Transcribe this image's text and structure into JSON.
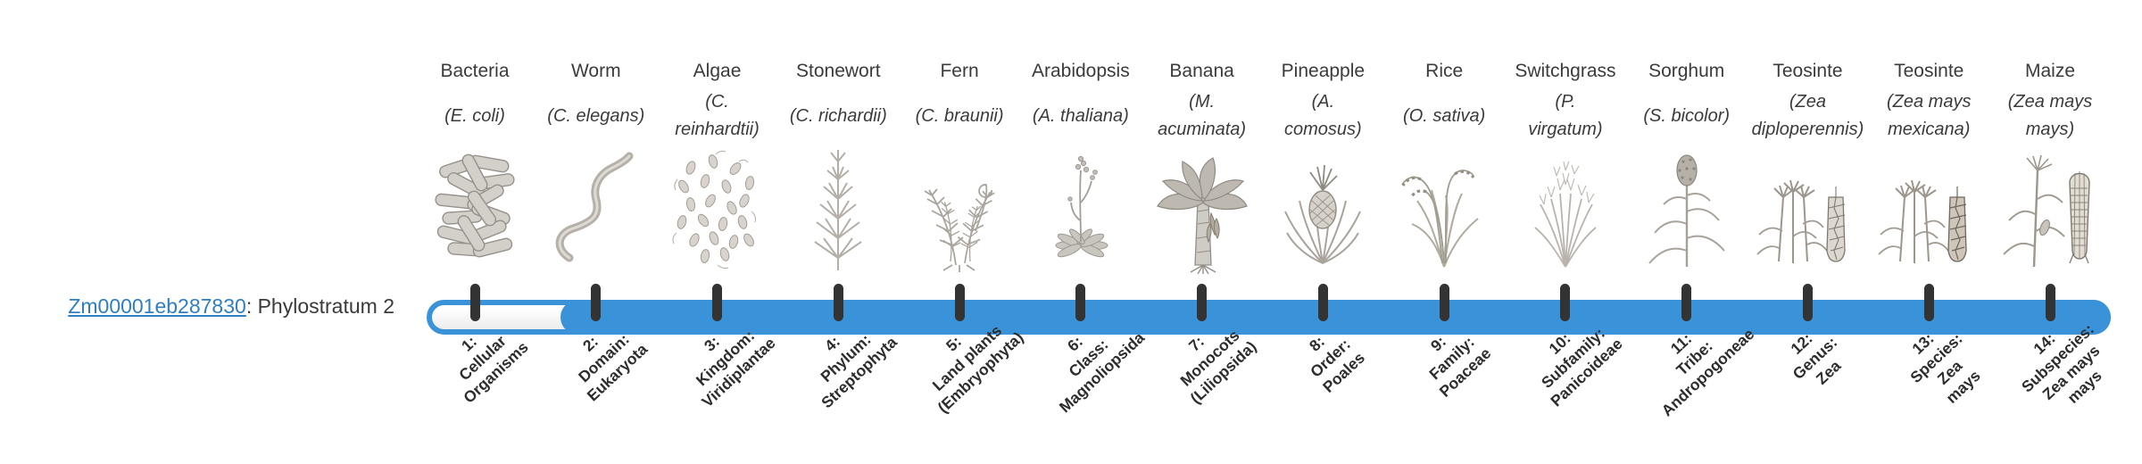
{
  "gene": {
    "id": "Zm00001eb287830",
    "label_suffix": ": Phylostratum 2",
    "phylostratum": 2,
    "link_color": "#2e7fc2"
  },
  "timeline": {
    "bar_color": "#3a93d8",
    "tick_color": "#333333",
    "strata_count": 14,
    "filled_from_stratum": 2,
    "unfilled_strata": [
      1
    ],
    "columns": [
      {
        "name": "Bacteria",
        "species": "(E. coli)",
        "icon": "bacteria-illustration",
        "stratum": "1:\nCellular\nOrganisms"
      },
      {
        "name": "Worm",
        "species": "(C. elegans)",
        "icon": "worm-illustration",
        "stratum": "2:\nDomain:\nEukaryota"
      },
      {
        "name": "Algae",
        "species": "(C.\nreinhardtii)",
        "icon": "algae-illustration",
        "stratum": "3:\nKingdom:\nViridiplantae"
      },
      {
        "name": "Stonewort",
        "species": "(C. richardii)",
        "icon": "stonewort-illustration",
        "stratum": "4:\nPhylum:\nStreptophyta"
      },
      {
        "name": "Fern",
        "species": "(C. braunii)",
        "icon": "fern-illustration",
        "stratum": "5:\nLand plants\n(Embryophyta)"
      },
      {
        "name": "Arabidopsis",
        "species": "(A. thaliana)",
        "icon": "arabidopsis-illustration",
        "stratum": "6:\nClass:\nMagnoliopsida"
      },
      {
        "name": "Banana",
        "species": "(M.\nacuminata)",
        "icon": "banana-illustration",
        "stratum": "7:\nMonocots\n(Liliopsida)"
      },
      {
        "name": "Pineapple",
        "species": "(A.\ncomosus)",
        "icon": "pineapple-illustration",
        "stratum": "8:\nOrder:\nPoales"
      },
      {
        "name": "Rice",
        "species": "(O. sativa)",
        "icon": "rice-illustration",
        "stratum": "9:\nFamily:\nPoaceae"
      },
      {
        "name": "Switchgrass",
        "species": "(P.\nvirgatum)",
        "icon": "switchgrass-illustration",
        "stratum": "10:\nSubfamily:\nPanicoideae"
      },
      {
        "name": "Sorghum",
        "species": "(S. bicolor)",
        "icon": "sorghum-illustration",
        "stratum": "11:\nTribe:\nAndropogoneae"
      },
      {
        "name": "Teosinte",
        "species": "(Zea\ndiploperennis)",
        "icon": "teosinte-illustration",
        "stratum": "12:\nGenus:\nZea"
      },
      {
        "name": "Teosinte",
        "species": "(Zea mays\nmexicana)",
        "icon": "teosinte2-illustration",
        "stratum": "13:\nSpecies:\nZea\nmays"
      },
      {
        "name": "Maize",
        "species": "(Zea mays\nmays)",
        "icon": "maize-illustration",
        "stratum": "14:\nSubspecies:\nZea mays\nmays"
      }
    ]
  }
}
